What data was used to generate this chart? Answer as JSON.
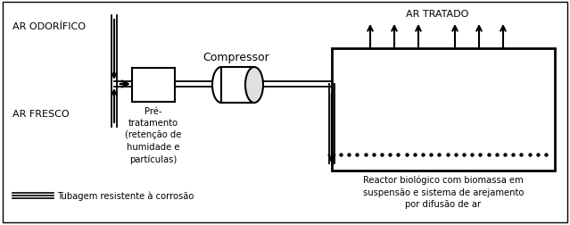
{
  "bg_color": "#ffffff",
  "border_color": "#000000",
  "text_ar_odorifico": "AR ODORÍFICO",
  "text_ar_fresco": "AR FRESCO",
  "text_ar_tratado": "AR TRATADO",
  "text_compressor": "Compressor",
  "text_pre_tratamento": "Pré-\ntratamento\n(retenção de\nhumidade e\npartículas)",
  "text_reactor": "Reactor biológico com biomassa em\nsuspensão e sistema de arejamento\npor difusão de ar",
  "text_tubagem": "Tubagem resistente à corrosão",
  "figsize": [
    6.39,
    2.53
  ],
  "dpi": 100
}
